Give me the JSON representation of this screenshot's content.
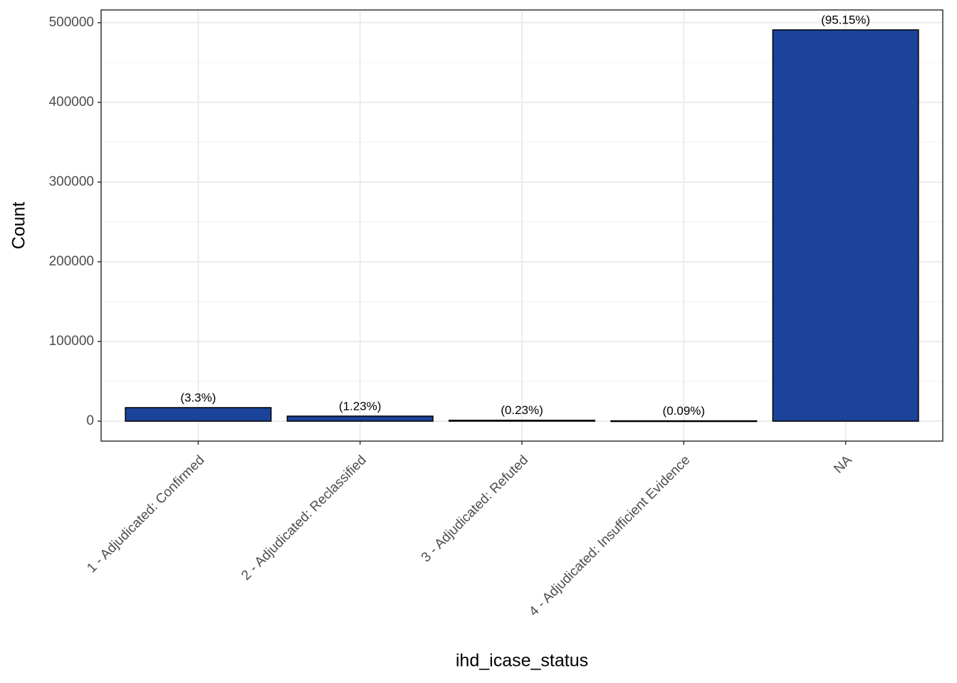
{
  "chart_data": {
    "type": "bar",
    "x_label": "ihd_icase_status",
    "y_label": "Count",
    "categories": [
      "1 - Adjudicated: Confirmed",
      "2 - Adjudicated: Reclassified",
      "3 - Adjudicated: Refuted",
      "4 - Adjudicated: Insufficient Evidence",
      "NA"
    ],
    "values": [
      17000,
      6350,
      1190,
      465,
      491000
    ],
    "bar_labels": [
      "(3.3%)",
      "(1.23%)",
      "(0.23%)",
      "(0.09%)",
      "(95.15%)"
    ],
    "color": "#1a4399",
    "ylim": [
      -25000,
      516000
    ],
    "yticks": [
      0,
      100000,
      200000,
      300000,
      400000,
      500000
    ],
    "minor_yticks": [
      50000,
      150000,
      250000,
      350000,
      450000
    ],
    "grid": true
  }
}
